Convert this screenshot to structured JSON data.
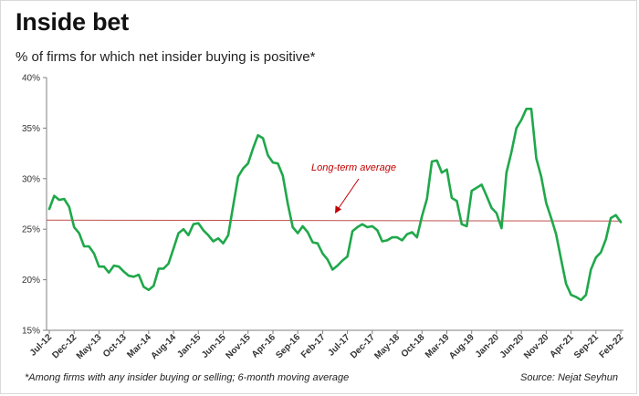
{
  "title": "Inside bet",
  "subtitle": "% of firms for which net insider buying is positive*",
  "footnote": "*Among firms with any insider buying or selling; 6-month moving average",
  "source": "Source: Nejat Seyhun",
  "colors": {
    "series": "#1fa84a",
    "average_line": "#c0504d",
    "annotation": "#c00000",
    "axis": "#7f7f7f"
  },
  "chart_data": {
    "type": "line",
    "ylim": [
      15,
      40
    ],
    "y_ticks": [
      "15%",
      "20%",
      "25%",
      "30%",
      "35%",
      "40%"
    ],
    "x_tick_labels": [
      "Jul-12",
      "Dec-12",
      "May-13",
      "Oct-13",
      "Mar-14",
      "Aug-14",
      "Jan-15",
      "Jun-15",
      "Nov-15",
      "Apr-16",
      "Sep-16",
      "Feb-17",
      "Jul-17",
      "Dec-17",
      "May-18",
      "Oct-18",
      "Mar-19",
      "Aug-19",
      "Jan-20",
      "Jun-20",
      "Nov-20",
      "Apr-21",
      "Sep-21",
      "Feb-22"
    ],
    "x_start": "Jul-12",
    "grid": false,
    "annotation": "Long-term average",
    "long_term_average": 25.9,
    "series": [
      {
        "values": [
          27.0,
          28.3,
          27.9,
          28.0,
          27.2,
          25.2,
          24.6,
          23.3,
          23.3,
          22.6,
          21.3,
          21.3,
          20.7,
          21.4,
          21.3,
          20.8,
          20.4,
          20.3,
          20.5,
          19.3,
          19.0,
          19.4,
          21.1,
          21.1,
          21.6,
          23.1,
          24.6,
          25.0,
          24.4,
          25.5,
          25.6,
          24.9,
          24.4,
          23.8,
          24.1,
          23.6,
          24.4,
          27.3,
          30.2,
          31.0,
          31.5,
          33.0,
          34.3,
          34.0,
          32.3,
          31.6,
          31.5,
          30.3,
          27.5,
          25.2,
          24.6,
          25.3,
          24.7,
          23.7,
          23.6,
          22.6,
          22.0,
          21.0,
          21.4,
          21.9,
          22.3,
          24.8,
          25.2,
          25.5,
          25.2,
          25.3,
          24.9,
          23.8,
          23.9,
          24.2,
          24.2,
          23.9,
          24.5,
          24.7,
          24.2,
          26.3,
          28.0,
          31.7,
          31.8,
          30.6,
          30.9,
          28.1,
          27.8,
          25.5,
          25.3,
          28.8,
          29.1,
          29.4,
          28.3,
          27.1,
          26.6,
          25.1,
          30.6,
          32.6,
          35.0,
          35.8,
          36.9,
          36.9,
          32.0,
          30.2,
          27.6,
          26.1,
          24.5,
          22.0,
          19.6,
          18.5,
          18.3,
          18.0,
          18.5,
          21.0,
          22.2,
          22.7,
          24.0,
          26.1,
          26.4,
          25.7
        ]
      }
    ]
  }
}
